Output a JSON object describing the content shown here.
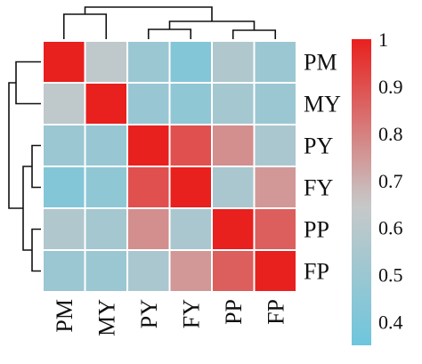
{
  "chart_data": {
    "type": "heatmap",
    "title": "",
    "xlabel": "",
    "ylabel": "",
    "rows": [
      "PM",
      "MY",
      "PY",
      "FY",
      "PP",
      "FP"
    ],
    "cols": [
      "PM",
      "MY",
      "PY",
      "FY",
      "PP",
      "FP"
    ],
    "values": [
      [
        1.0,
        0.62,
        0.5,
        0.42,
        0.57,
        0.5
      ],
      [
        0.62,
        1.0,
        0.49,
        0.46,
        0.53,
        0.5
      ],
      [
        0.5,
        0.49,
        1.0,
        0.9,
        0.77,
        0.55
      ],
      [
        0.42,
        0.46,
        0.9,
        1.0,
        0.55,
        0.75
      ],
      [
        0.57,
        0.53,
        0.77,
        0.55,
        1.0,
        0.87
      ],
      [
        0.5,
        0.5,
        0.55,
        0.75,
        0.87,
        1.0
      ]
    ],
    "colorbar": {
      "min": 0.35,
      "max": 1.0,
      "ticks": [
        "1",
        "0.9",
        "0.8",
        "0.7",
        "0.6",
        "0.5",
        "0.4"
      ],
      "tick_values": [
        1.0,
        0.9,
        0.8,
        0.7,
        0.6,
        0.5,
        0.4
      ],
      "color_low": "#6ec6dc",
      "color_mid": "#c8c8c8",
      "color_high": "#e8201e"
    },
    "dendrogram": {
      "top": "columns clustered: ((PM, MY), ((PY, FY), (PP, FP)))",
      "left": "rows clustered: ((PM, MY), ((PY, FY), (PP, FP)))"
    }
  }
}
